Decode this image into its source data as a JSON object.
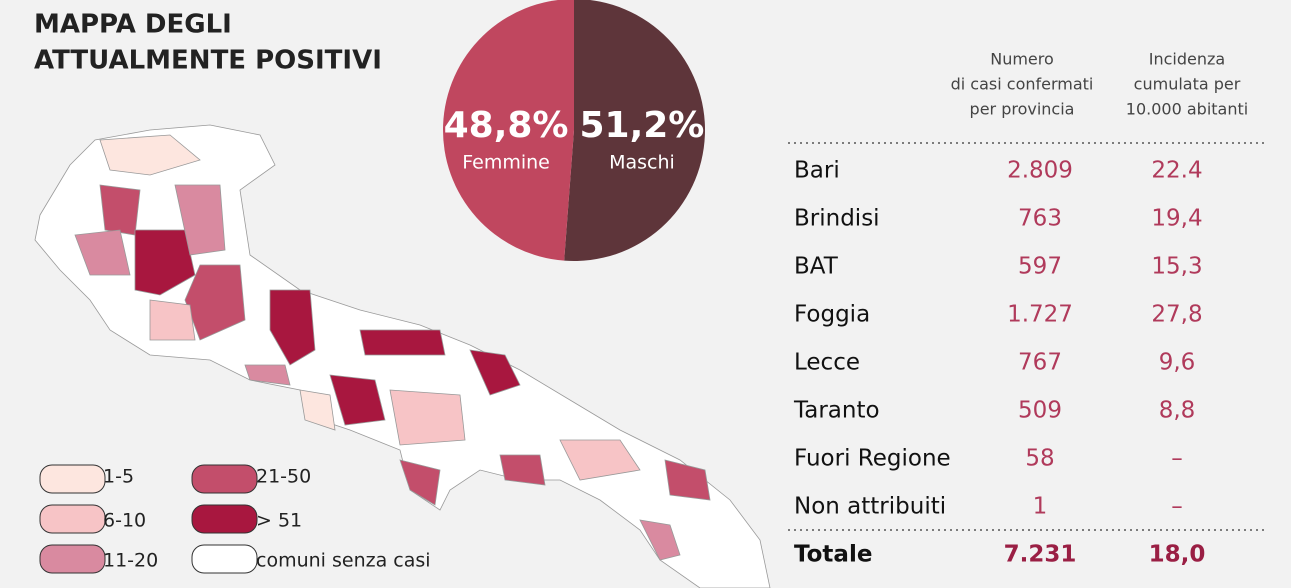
{
  "title": [
    "MAPPA DEGLI",
    "ATTUALMENTE POSITIVI"
  ],
  "chart_data": {
    "type": "pie",
    "categories": [
      "Femmine",
      "Maschi"
    ],
    "values": [
      48.8,
      51.2
    ],
    "value_labels": [
      "48,8%",
      "51,2%"
    ],
    "colors": [
      "#c0475f",
      "#5e353a"
    ]
  },
  "legend": [
    {
      "label": "1-5",
      "color": "#fde6df"
    },
    {
      "label": "6-10",
      "color": "#f7c4c6"
    },
    {
      "label": "11-20",
      "color": "#d98aa0"
    },
    {
      "label": "21-50",
      "color": "#c34e6b"
    },
    {
      "label": "> 51",
      "color": "#a8173f"
    },
    {
      "label": "comuni senza casi",
      "color": "#ffffff"
    }
  ],
  "table": {
    "header": [
      [
        "Numero",
        "di casi confermati",
        "per provincia"
      ],
      [
        "Incidenza",
        "cumulata per",
        "10.000 abitanti"
      ]
    ],
    "rows": [
      [
        "Bari",
        "2.809",
        "22.4"
      ],
      [
        "Brindisi",
        "763",
        "19,4"
      ],
      [
        "BAT",
        "597",
        "15,3"
      ],
      [
        "Foggia",
        "1.727",
        "27,8"
      ],
      [
        "Lecce",
        "767",
        "9,6"
      ],
      [
        "Taranto",
        "509",
        "8,8"
      ],
      [
        "Fuori Regione",
        "58",
        "–"
      ],
      [
        "Non attribuiti",
        "1",
        "–"
      ]
    ],
    "total": [
      "Totale",
      "7.231",
      "18,0"
    ]
  }
}
